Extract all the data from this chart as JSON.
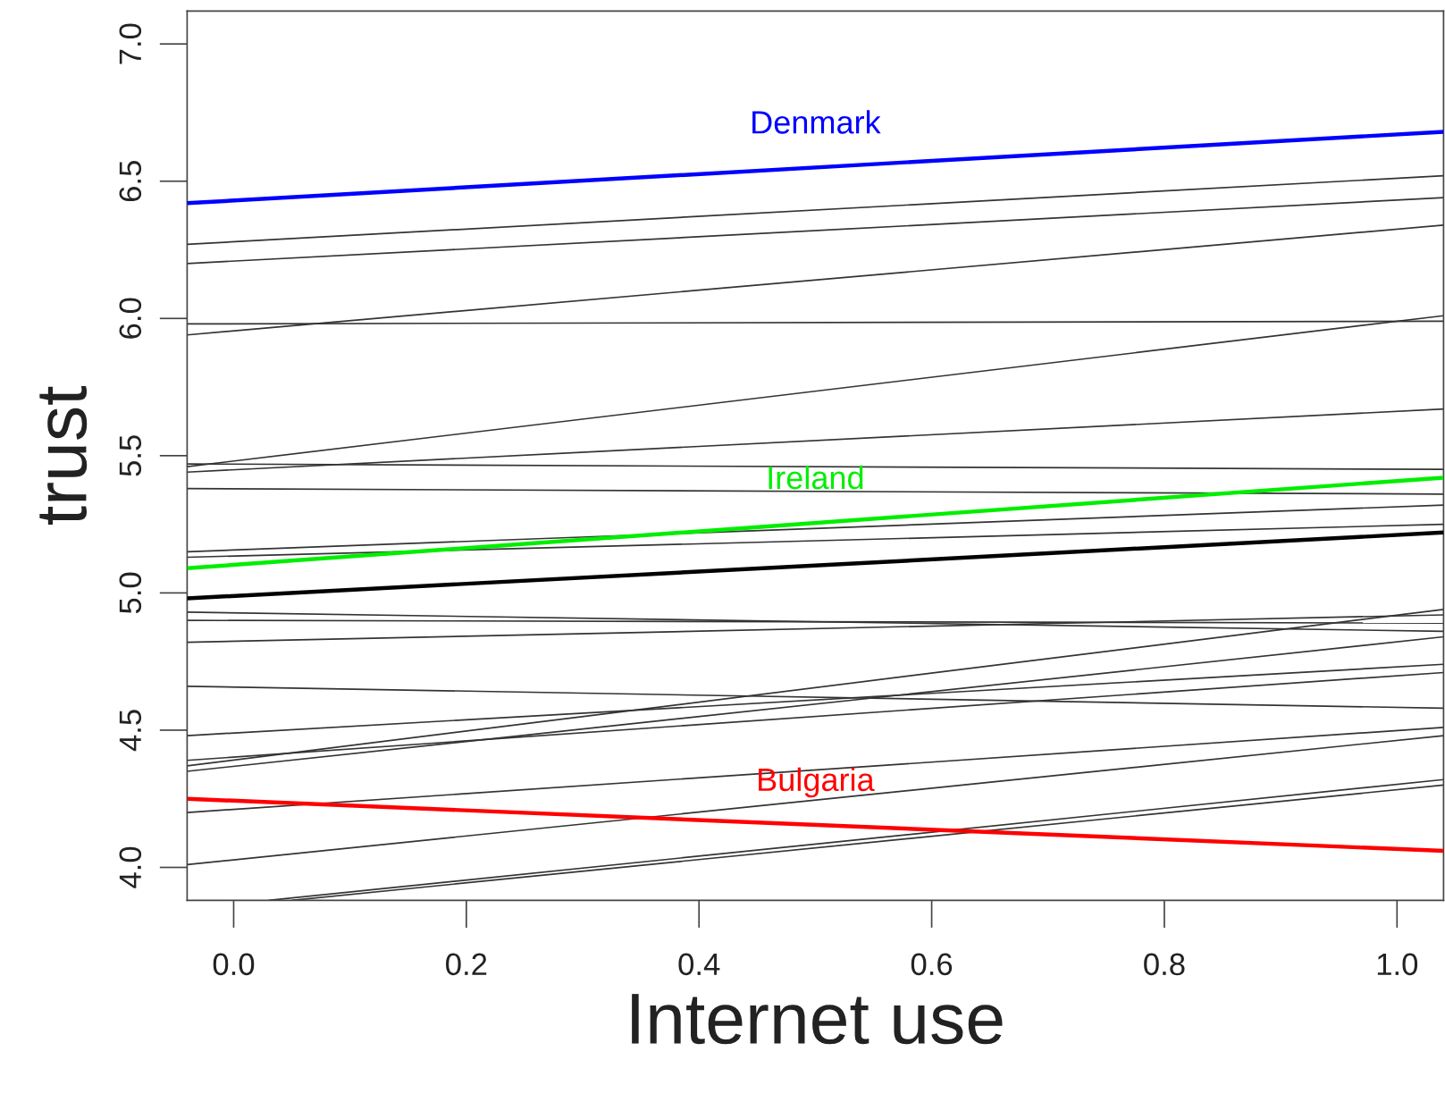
{
  "chart_data": {
    "type": "line",
    "xlabel": "Internet use",
    "ylabel": "trust",
    "xlim": [
      -0.04,
      1.04
    ],
    "ylim": [
      3.88,
      7.12
    ],
    "xticks": [
      {
        "value": 0,
        "label": "0.0"
      },
      0.2,
      0.4,
      0.6,
      0.8,
      {
        "value": 1,
        "label": "1.0"
      }
    ],
    "yticks": [
      {
        "value": 4,
        "label": "4.0"
      },
      4.5,
      {
        "value": 5,
        "label": "5.0"
      },
      5.5,
      {
        "value": 6,
        "label": "6.0"
      },
      6.5,
      {
        "value": 7,
        "label": "7.0"
      }
    ],
    "grid": false,
    "legend": false,
    "marker": "none",
    "line_style": "solid",
    "x": [
      -0.04,
      1.04
    ],
    "series": [
      {
        "color": "#333333",
        "values": [
          6.27,
          6.52
        ]
      },
      {
        "color": "#333333",
        "values": [
          6.2,
          6.44
        ]
      },
      {
        "color": "#333333",
        "values": [
          5.94,
          6.34
        ]
      },
      {
        "color": "#333333",
        "values": [
          5.98,
          5.99
        ]
      },
      {
        "color": "#333333",
        "values": [
          5.46,
          6.01
        ]
      },
      {
        "color": "#333333",
        "values": [
          5.44,
          5.67
        ]
      },
      {
        "color": "#333333",
        "values": [
          5.47,
          5.45
        ]
      },
      {
        "color": "#333333",
        "values": [
          5.38,
          5.36
        ]
      },
      {
        "color": "#333333",
        "values": [
          5.15,
          5.32
        ]
      },
      {
        "color": "#333333",
        "values": [
          5.13,
          5.25
        ]
      },
      {
        "color": "#333333",
        "values": [
          4.93,
          4.86
        ]
      },
      {
        "color": "#333333",
        "values": [
          4.9,
          4.89
        ]
      },
      {
        "color": "#333333",
        "values": [
          4.82,
          4.92
        ]
      },
      {
        "color": "#333333",
        "values": [
          4.66,
          4.58
        ]
      },
      {
        "color": "#333333",
        "values": [
          4.48,
          4.74
        ]
      },
      {
        "color": "#333333",
        "values": [
          4.39,
          4.71
        ]
      },
      {
        "color": "#333333",
        "values": [
          4.37,
          4.94
        ]
      },
      {
        "color": "#333333",
        "values": [
          4.35,
          4.84
        ]
      },
      {
        "color": "#333333",
        "values": [
          4.2,
          4.51
        ]
      },
      {
        "color": "#333333",
        "values": [
          4.01,
          4.48
        ]
      },
      {
        "color": "#333333",
        "x": [
          0.03,
          1.04
        ],
        "values": [
          3.88,
          4.32
        ]
      },
      {
        "color": "#333333",
        "x": [
          0.05,
          1.04
        ],
        "values": [
          3.88,
          4.3
        ]
      },
      {
        "color": "#000000",
        "values": [
          4.98,
          5.22
        ]
      },
      {
        "name": "Denmark",
        "color": "#0000ff",
        "values": [
          6.42,
          6.68
        ]
      },
      {
        "name": "Ireland",
        "color": "#00ee00",
        "values": [
          5.09,
          5.42
        ]
      },
      {
        "name": "Bulgaria",
        "color": "#ff0000",
        "values": [
          4.25,
          4.06
        ]
      }
    ]
  }
}
